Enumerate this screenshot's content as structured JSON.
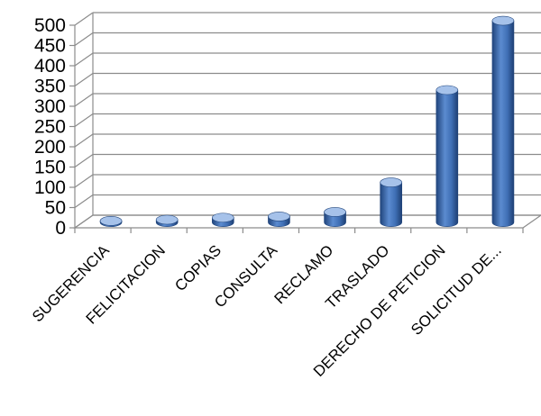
{
  "chart_data": {
    "type": "bar",
    "categories": [
      "SUGERENCIA",
      "FELICITACION",
      "COPIAS",
      "CONSULTA",
      "RECLAMO",
      "TRASLADO",
      "DERECHO DE PETICION",
      "SOLICITUD DE..."
    ],
    "values": [
      3,
      6,
      11,
      14,
      25,
      98,
      326,
      497
    ],
    "yticks": [
      0,
      50,
      100,
      150,
      200,
      250,
      300,
      350,
      400,
      450,
      500
    ],
    "ylim": [
      0,
      500
    ],
    "grid": true,
    "legend": "none",
    "bar_color": "#3f6fb5",
    "bar_light": "#a6c2ea",
    "bar_dark": "#21457c"
  }
}
